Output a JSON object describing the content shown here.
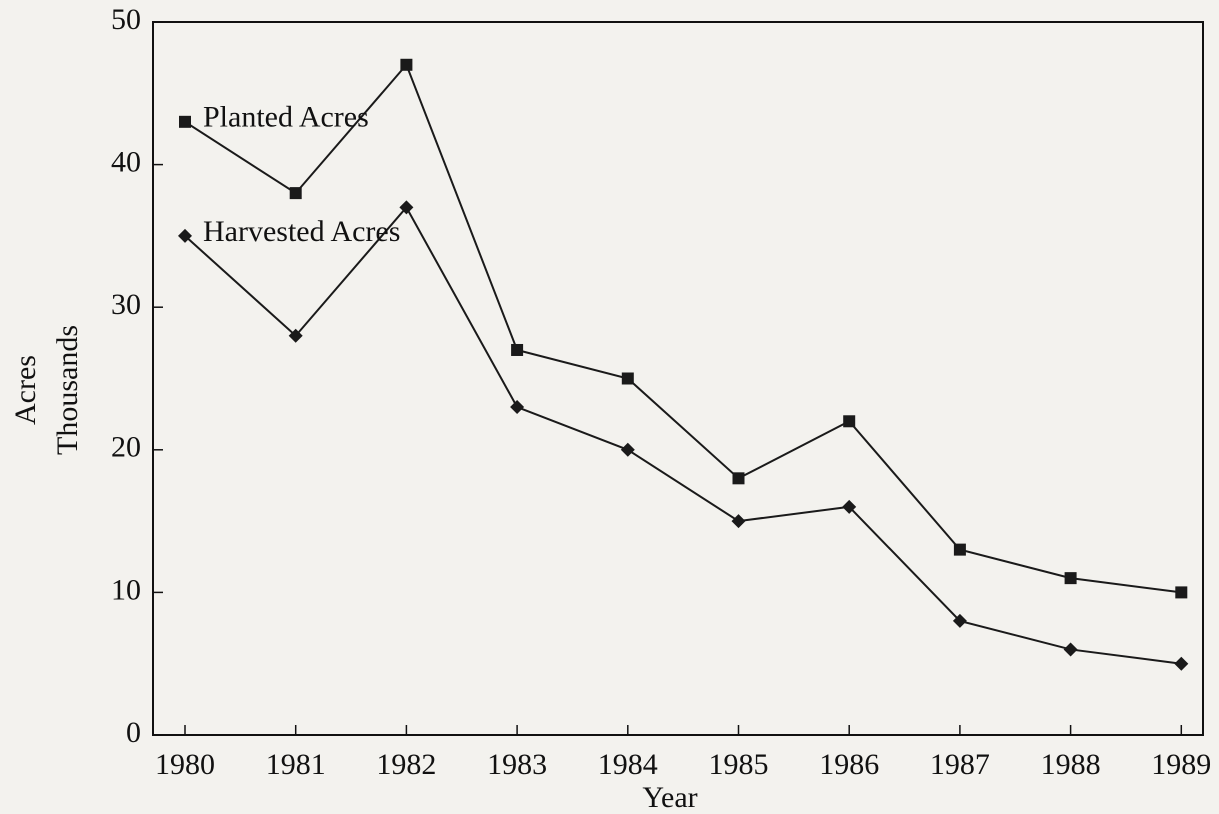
{
  "chart_data": {
    "type": "line",
    "x_label": "Year",
    "y_label": [
      "Acres",
      "Thousands"
    ],
    "categories": [
      "1980",
      "1981",
      "1982",
      "1983",
      "1984",
      "1985",
      "1986",
      "1987",
      "1988",
      "1989"
    ],
    "series": [
      {
        "name": "Planted Acres",
        "color": "#1a1a1a",
        "marker": "square",
        "values": [
          43,
          38,
          47,
          27,
          25,
          18,
          22,
          13,
          11,
          10
        ]
      },
      {
        "name": "Harvested Acres",
        "color": "#1a1a1a",
        "marker": "diamond",
        "values": [
          35,
          28,
          37,
          23,
          20,
          15,
          16,
          8,
          6,
          5
        ]
      }
    ],
    "ylim": [
      0,
      50
    ],
    "yticks": [
      0,
      10,
      20,
      30,
      40,
      50
    ],
    "grid": false
  }
}
